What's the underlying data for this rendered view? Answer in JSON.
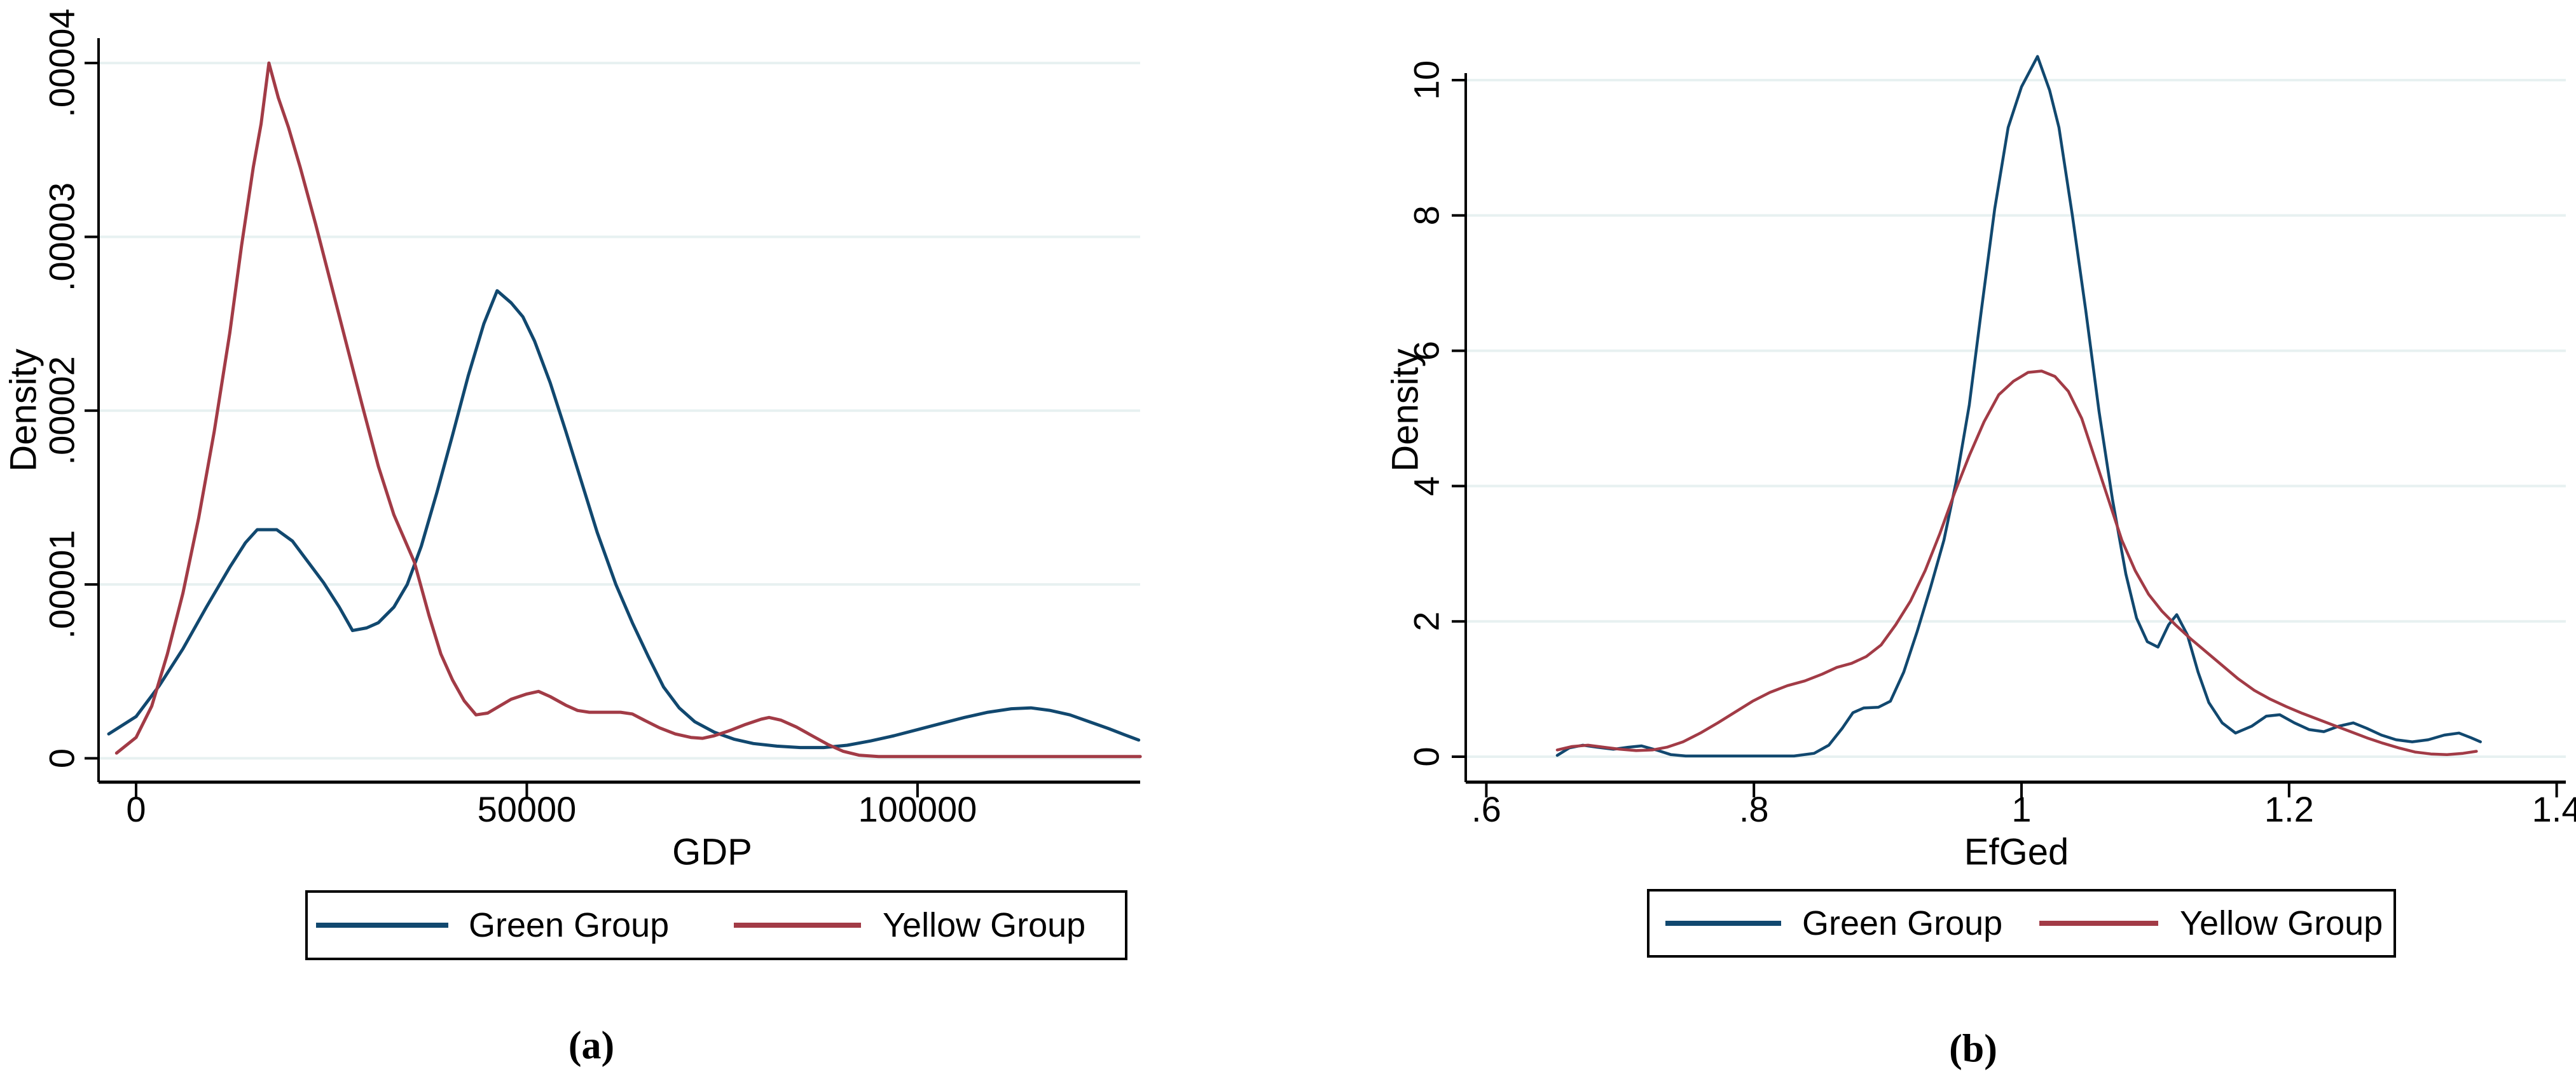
{
  "page": {
    "background": "#ffffff"
  },
  "colors": {
    "navy": "#11486f",
    "maroon": "#a23b46",
    "gridline": "#e7f1f1",
    "axis": "#000000"
  },
  "legend": {
    "items": [
      {
        "label": "Green Group",
        "color": "#11486f"
      },
      {
        "label": "Yellow Group",
        "color": "#a23b46"
      }
    ]
  },
  "panels": [
    {
      "caption": "(a)",
      "xlabel": "GDP",
      "ylabel": "Density"
    },
    {
      "caption": "(b)",
      "xlabel": "EfGed",
      "ylabel": "Density"
    }
  ],
  "chart_data": [
    {
      "type": "line",
      "title": "",
      "xlabel": "GDP",
      "ylabel": "Density",
      "xlim": [
        -5000,
        133000
      ],
      "ylim": [
        0,
        4e-05
      ],
      "grid": "horizontal",
      "legend_position": "bottom",
      "x_ticks": {
        "values": [
          0,
          50000,
          100000
        ],
        "labels": [
          "0",
          "50000",
          "100000"
        ]
      },
      "y_ticks": {
        "values": [
          0,
          1e-05,
          2e-05,
          3e-05,
          4e-05
        ],
        "labels": [
          "0",
          ".00001",
          ".00002",
          ".00003",
          ".00004"
        ]
      },
      "series": [
        {
          "name": "Green Group",
          "color": "#11486f",
          "points": [
            [
              -3500,
              1.4e-06
            ],
            [
              0,
              2.4e-06
            ],
            [
              3000,
              4.2e-06
            ],
            [
              6000,
              6.3e-06
            ],
            [
              9000,
              8.7e-06
            ],
            [
              12000,
              1.1e-05
            ],
            [
              14000,
              1.24e-05
            ],
            [
              15500,
              1.315e-05
            ],
            [
              18000,
              1.315e-05
            ],
            [
              20000,
              1.25e-05
            ],
            [
              22000,
              1.13e-05
            ],
            [
              24000,
              1.01e-05
            ],
            [
              26000,
              8.7e-06
            ],
            [
              27700,
              7.35e-06
            ],
            [
              29500,
              7.5e-06
            ],
            [
              31000,
              7.8e-06
            ],
            [
              33000,
              8.7e-06
            ],
            [
              34700,
              1e-05
            ],
            [
              36500,
              1.22e-05
            ],
            [
              38500,
              1.53e-05
            ],
            [
              40500,
              1.86e-05
            ],
            [
              42500,
              2.2e-05
            ],
            [
              44500,
              2.5e-05
            ],
            [
              46200,
              2.69e-05
            ],
            [
              48000,
              2.62e-05
            ],
            [
              49500,
              2.54e-05
            ],
            [
              51000,
              2.4e-05
            ],
            [
              53000,
              2.16e-05
            ],
            [
              55000,
              1.88e-05
            ],
            [
              57000,
              1.59e-05
            ],
            [
              59000,
              1.3e-05
            ],
            [
              61400,
              1e-05
            ],
            [
              63500,
              7.8e-06
            ],
            [
              65500,
              5.9e-06
            ],
            [
              67500,
              4.1e-06
            ],
            [
              69500,
              2.9e-06
            ],
            [
              71500,
              2.1e-06
            ],
            [
              74000,
              1.5e-06
            ],
            [
              76500,
              1.1e-06
            ],
            [
              79000,
              8.5e-07
            ],
            [
              82000,
              7e-07
            ],
            [
              85000,
              6.2e-07
            ],
            [
              88000,
              6.2e-07
            ],
            [
              91000,
              7.5e-07
            ],
            [
              94000,
              1e-06
            ],
            [
              97000,
              1.3e-06
            ],
            [
              100000,
              1.65e-06
            ],
            [
              103000,
              2e-06
            ],
            [
              106000,
              2.35e-06
            ],
            [
              109000,
              2.65e-06
            ],
            [
              112000,
              2.85e-06
            ],
            [
              114500,
              2.9e-06
            ],
            [
              117000,
              2.75e-06
            ],
            [
              119500,
              2.5e-06
            ],
            [
              122000,
              2.1e-06
            ],
            [
              124500,
              1.7e-06
            ],
            [
              126500,
              1.35e-06
            ],
            [
              128300,
              1.05e-06
            ]
          ]
        },
        {
          "name": "Yellow Group",
          "color": "#a23b46",
          "points": [
            [
              -2500,
              3e-07
            ],
            [
              0,
              1.2e-06
            ],
            [
              2000,
              3e-06
            ],
            [
              4000,
              6e-06
            ],
            [
              6000,
              9.5e-06
            ],
            [
              8000,
              1.38e-05
            ],
            [
              10000,
              1.88e-05
            ],
            [
              12000,
              2.45e-05
            ],
            [
              13500,
              2.95e-05
            ],
            [
              15000,
              3.4e-05
            ],
            [
              16000,
              3.65e-05
            ],
            [
              17000,
              4e-05
            ],
            [
              18200,
              3.8e-05
            ],
            [
              19500,
              3.63e-05
            ],
            [
              21000,
              3.4e-05
            ],
            [
              23000,
              3.07e-05
            ],
            [
              25000,
              2.72e-05
            ],
            [
              27000,
              2.37e-05
            ],
            [
              29000,
              2.02e-05
            ],
            [
              31000,
              1.68e-05
            ],
            [
              33000,
              1.4e-05
            ],
            [
              35600,
              1.13e-05
            ],
            [
              37500,
              8.2e-06
            ],
            [
              39000,
              6e-06
            ],
            [
              40500,
              4.5e-06
            ],
            [
              42000,
              3.3e-06
            ],
            [
              43500,
              2.5e-06
            ],
            [
              45000,
              2.6e-06
            ],
            [
              46500,
              3e-06
            ],
            [
              48000,
              3.4e-06
            ],
            [
              50000,
              3.7e-06
            ],
            [
              51500,
              3.85e-06
            ],
            [
              53000,
              3.55e-06
            ],
            [
              55000,
              3.05e-06
            ],
            [
              56500,
              2.75e-06
            ],
            [
              58000,
              2.65e-06
            ],
            [
              62000,
              2.65e-06
            ],
            [
              63500,
              2.55e-06
            ],
            [
              65000,
              2.2e-06
            ],
            [
              67000,
              1.75e-06
            ],
            [
              69000,
              1.4e-06
            ],
            [
              71000,
              1.2e-06
            ],
            [
              72500,
              1.15e-06
            ],
            [
              74000,
              1.3e-06
            ],
            [
              76000,
              1.6e-06
            ],
            [
              78000,
              1.95e-06
            ],
            [
              80000,
              2.25e-06
            ],
            [
              81000,
              2.35e-06
            ],
            [
              82500,
              2.2e-06
            ],
            [
              84500,
              1.8e-06
            ],
            [
              86500,
              1.3e-06
            ],
            [
              88500,
              8e-07
            ],
            [
              90500,
              4e-07
            ],
            [
              92500,
              1.8e-07
            ],
            [
              95000,
              1e-07
            ],
            [
              100000,
              1e-07
            ],
            [
              110000,
              1e-07
            ],
            [
              120000,
              1e-07
            ],
            [
              128500,
              1e-07
            ]
          ]
        }
      ]
    },
    {
      "type": "line",
      "title": "",
      "xlabel": "EfGed",
      "ylabel": "Density",
      "xlim": [
        0.58,
        1.41
      ],
      "ylim": [
        0,
        10.5
      ],
      "grid": "horizontal",
      "legend_position": "bottom",
      "x_ticks": {
        "values": [
          0.6,
          0.8,
          1.0,
          1.2,
          1.4
        ],
        "labels": [
          ".6",
          ".8",
          "1",
          "1.2",
          "1.4"
        ]
      },
      "y_ticks": {
        "values": [
          0,
          2,
          4,
          6,
          8,
          10
        ],
        "labels": [
          "0",
          "2",
          "4",
          "6",
          "8",
          "10"
        ]
      },
      "series": [
        {
          "name": "Green Group",
          "color": "#11486f",
          "points": [
            [
              0.653,
              0.02
            ],
            [
              0.662,
              0.13
            ],
            [
              0.672,
              0.17
            ],
            [
              0.683,
              0.14
            ],
            [
              0.695,
              0.11
            ],
            [
              0.706,
              0.14
            ],
            [
              0.716,
              0.16
            ],
            [
              0.727,
              0.1
            ],
            [
              0.738,
              0.03
            ],
            [
              0.749,
              0.01
            ],
            [
              0.78,
              0.01
            ],
            [
              0.81,
              0.01
            ],
            [
              0.83,
              0.01
            ],
            [
              0.845,
              0.05
            ],
            [
              0.856,
              0.17
            ],
            [
              0.866,
              0.42
            ],
            [
              0.874,
              0.65
            ],
            [
              0.882,
              0.72
            ],
            [
              0.893,
              0.73
            ],
            [
              0.902,
              0.82
            ],
            [
              0.912,
              1.25
            ],
            [
              0.922,
              1.85
            ],
            [
              0.932,
              2.5
            ],
            [
              0.942,
              3.2
            ],
            [
              0.951,
              4.05
            ],
            [
              0.961,
              5.2
            ],
            [
              0.97,
              6.6
            ],
            [
              0.98,
              8.1
            ],
            [
              0.99,
              9.3
            ],
            [
              1.0,
              9.9
            ],
            [
              1.012,
              10.35
            ],
            [
              1.021,
              9.85
            ],
            [
              1.028,
              9.3
            ],
            [
              1.038,
              8.0
            ],
            [
              1.048,
              6.6
            ],
            [
              1.058,
              5.1
            ],
            [
              1.068,
              3.8
            ],
            [
              1.078,
              2.7
            ],
            [
              1.086,
              2.05
            ],
            [
              1.094,
              1.7
            ],
            [
              1.102,
              1.62
            ],
            [
              1.11,
              1.95
            ],
            [
              1.116,
              2.1
            ],
            [
              1.124,
              1.8
            ],
            [
              1.132,
              1.25
            ],
            [
              1.14,
              0.8
            ],
            [
              1.15,
              0.5
            ],
            [
              1.16,
              0.35
            ],
            [
              1.172,
              0.45
            ],
            [
              1.183,
              0.6
            ],
            [
              1.193,
              0.62
            ],
            [
              1.204,
              0.5
            ],
            [
              1.215,
              0.4
            ],
            [
              1.226,
              0.37
            ],
            [
              1.237,
              0.45
            ],
            [
              1.248,
              0.5
            ],
            [
              1.258,
              0.42
            ],
            [
              1.269,
              0.32
            ],
            [
              1.28,
              0.25
            ],
            [
              1.292,
              0.22
            ],
            [
              1.304,
              0.25
            ],
            [
              1.316,
              0.32
            ],
            [
              1.327,
              0.35
            ],
            [
              1.336,
              0.28
            ],
            [
              1.343,
              0.22
            ]
          ]
        },
        {
          "name": "Yellow Group",
          "color": "#a23b46",
          "points": [
            [
              0.653,
              0.1
            ],
            [
              0.664,
              0.15
            ],
            [
              0.676,
              0.17
            ],
            [
              0.688,
              0.14
            ],
            [
              0.7,
              0.11
            ],
            [
              0.712,
              0.09
            ],
            [
              0.724,
              0.1
            ],
            [
              0.735,
              0.14
            ],
            [
              0.747,
              0.22
            ],
            [
              0.76,
              0.35
            ],
            [
              0.773,
              0.5
            ],
            [
              0.786,
              0.66
            ],
            [
              0.799,
              0.82
            ],
            [
              0.812,
              0.95
            ],
            [
              0.825,
              1.05
            ],
            [
              0.838,
              1.12
            ],
            [
              0.851,
              1.22
            ],
            [
              0.862,
              1.32
            ],
            [
              0.873,
              1.38
            ],
            [
              0.884,
              1.48
            ],
            [
              0.895,
              1.65
            ],
            [
              0.906,
              1.95
            ],
            [
              0.917,
              2.3
            ],
            [
              0.928,
              2.75
            ],
            [
              0.939,
              3.3
            ],
            [
              0.95,
              3.9
            ],
            [
              0.961,
              4.45
            ],
            [
              0.972,
              4.95
            ],
            [
              0.983,
              5.35
            ],
            [
              0.994,
              5.55
            ],
            [
              1.005,
              5.68
            ],
            [
              1.015,
              5.7
            ],
            [
              1.025,
              5.62
            ],
            [
              1.035,
              5.4
            ],
            [
              1.045,
              5.0
            ],
            [
              1.055,
              4.4
            ],
            [
              1.065,
              3.8
            ],
            [
              1.075,
              3.2
            ],
            [
              1.085,
              2.75
            ],
            [
              1.095,
              2.4
            ],
            [
              1.105,
              2.15
            ],
            [
              1.115,
              1.95
            ],
            [
              1.126,
              1.75
            ],
            [
              1.138,
              1.55
            ],
            [
              1.15,
              1.35
            ],
            [
              1.162,
              1.15
            ],
            [
              1.174,
              0.98
            ],
            [
              1.186,
              0.85
            ],
            [
              1.198,
              0.74
            ],
            [
              1.21,
              0.64
            ],
            [
              1.222,
              0.55
            ],
            [
              1.234,
              0.46
            ],
            [
              1.246,
              0.37
            ],
            [
              1.258,
              0.28
            ],
            [
              1.27,
              0.2
            ],
            [
              1.282,
              0.13
            ],
            [
              1.294,
              0.07
            ],
            [
              1.306,
              0.04
            ],
            [
              1.318,
              0.03
            ],
            [
              1.33,
              0.05
            ],
            [
              1.34,
              0.08
            ]
          ]
        }
      ]
    }
  ]
}
